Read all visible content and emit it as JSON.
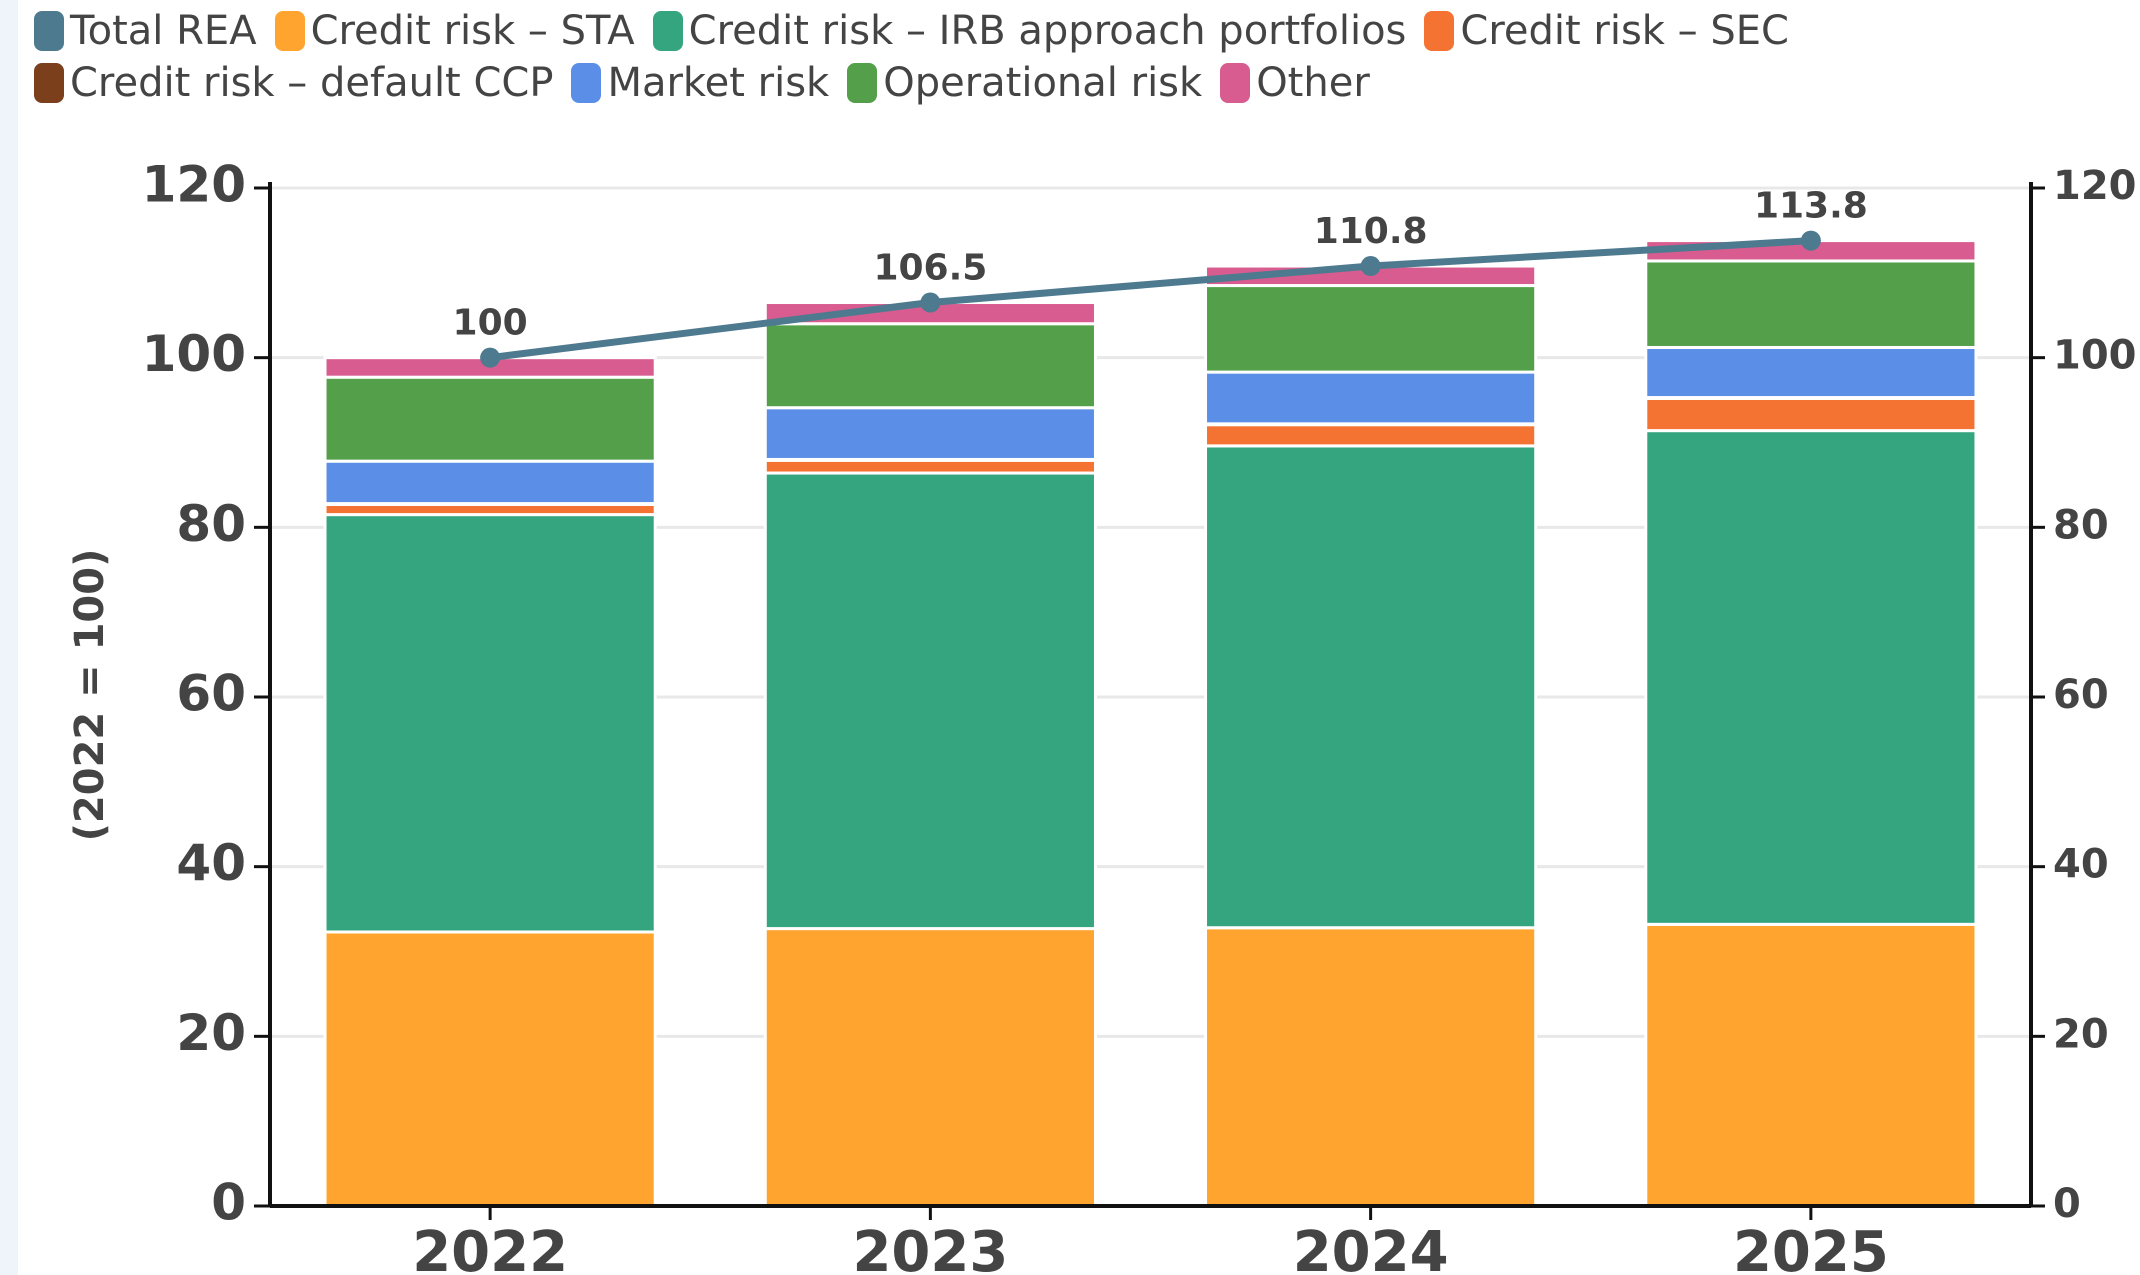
{
  "chart_data": {
    "type": "bar",
    "stacked": true,
    "ylabel": "(2022 = 100)",
    "categories": [
      "2022",
      "2023",
      "2024",
      "2025"
    ],
    "series": [
      {
        "name": "Total REA",
        "color": "#4e7a90",
        "type": "line",
        "axis": "y2",
        "values": [
          100,
          106.5,
          110.8,
          113.8
        ]
      },
      {
        "name": "Credit risk – STA",
        "color": "#ffa42e",
        "values": [
          32.3,
          32.7,
          32.8,
          33.2
        ]
      },
      {
        "name": "Credit risk – IRB approach portfolios",
        "color": "#35a580",
        "values": [
          49.2,
          53.7,
          56.8,
          58.2
        ]
      },
      {
        "name": "Credit risk –  SEC",
        "color": "#f47332",
        "values": [
          1.2,
          1.5,
          2.5,
          3.8
        ]
      },
      {
        "name": "Credit risk – default CCP",
        "color": "#7b3f1c",
        "values": [
          0.1,
          0.1,
          0.1,
          0.1
        ]
      },
      {
        "name": "Market risk",
        "color": "#5b8ee6",
        "values": [
          5.0,
          6.1,
          6.1,
          5.9
        ]
      },
      {
        "name": "Operational risk",
        "color": "#54a04a",
        "values": [
          9.9,
          9.9,
          10.2,
          10.2
        ]
      },
      {
        "name": "Other",
        "color": "#d85c8f",
        "values": [
          2.3,
          2.5,
          2.3,
          2.4
        ]
      }
    ],
    "ylim": [
      0,
      120
    ],
    "yticks": [
      0,
      20,
      40,
      60,
      80,
      100,
      120
    ],
    "y2lim": [
      0,
      120
    ],
    "y2ticks": [
      0,
      20,
      40,
      60,
      80,
      100,
      120
    ],
    "grid": true,
    "legend": "top"
  }
}
